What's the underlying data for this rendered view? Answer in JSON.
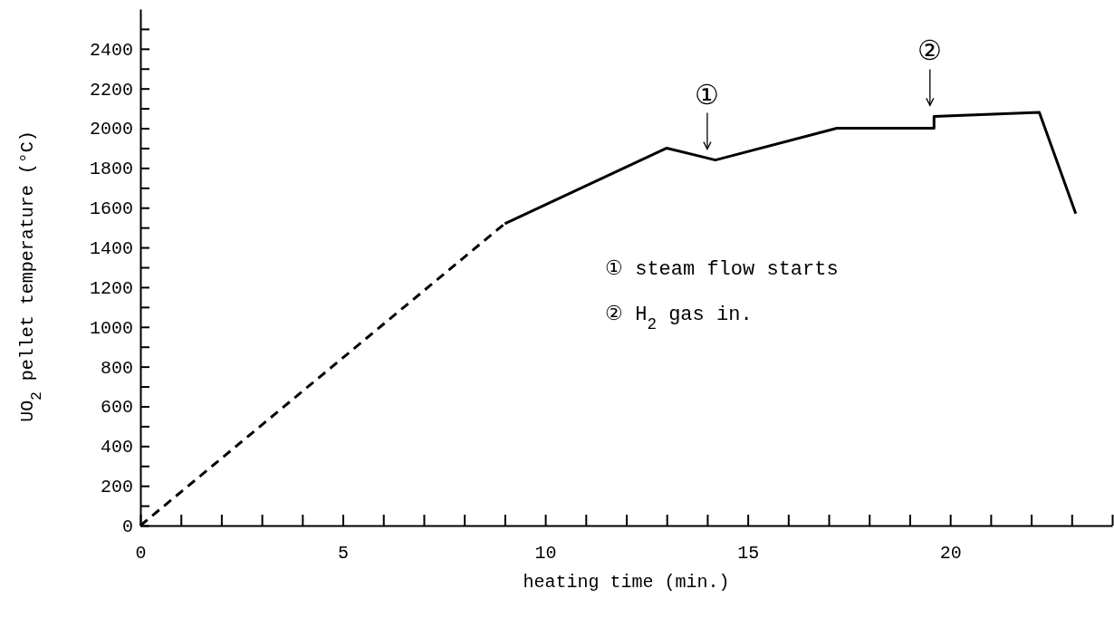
{
  "chart_data": {
    "type": "line",
    "xlabel": "heating time (min.)",
    "ylabel": "UO$_{2}$ pellet temperature (°C)",
    "xlim": [
      0,
      24
    ],
    "ylim": [
      0,
      2600
    ],
    "xticks": [
      0,
      {
        "value": 1,
        "label": null
      },
      {
        "value": 2,
        "label": null
      },
      {
        "value": 3,
        "label": null
      },
      {
        "value": 4,
        "label": null
      },
      5,
      {
        "value": 6,
        "label": null
      },
      {
        "value": 7,
        "label": null
      },
      {
        "value": 8,
        "label": null
      },
      {
        "value": 9,
        "label": null
      },
      10,
      {
        "value": 11,
        "label": null
      },
      {
        "value": 12,
        "label": null
      },
      {
        "value": 13,
        "label": null
      },
      {
        "value": 14,
        "label": null
      },
      15,
      {
        "value": 16,
        "label": null
      },
      {
        "value": 17,
        "label": null
      },
      {
        "value": 18,
        "label": null
      },
      {
        "value": 19,
        "label": null
      },
      20,
      {
        "value": 21,
        "label": null
      },
      {
        "value": 22,
        "label": null
      },
      {
        "value": 23,
        "label": null
      },
      {
        "value": 24,
        "label": null
      }
    ],
    "yticks": [
      0,
      {
        "value": 100,
        "label": null
      },
      200,
      {
        "value": 300,
        "label": null
      },
      400,
      {
        "value": 500,
        "label": null
      },
      600,
      {
        "value": 700,
        "label": null
      },
      800,
      {
        "value": 900,
        "label": null
      },
      1000,
      {
        "value": 1100,
        "label": null
      },
      1200,
      {
        "value": 1300,
        "label": null
      },
      1400,
      {
        "value": 1500,
        "label": null
      },
      1600,
      {
        "value": 1700,
        "label": null
      },
      1800,
      {
        "value": 1900,
        "label": null
      },
      2000,
      {
        "value": 2100,
        "label": null
      },
      2200,
      {
        "value": 2300,
        "label": null
      },
      2400,
      {
        "value": 2500,
        "label": null
      }
    ],
    "grid": false,
    "marker": "none",
    "series": [
      {
        "color": "#000000",
        "line_style": "dashed",
        "x": [
          0,
          9
        ],
        "values": [
          0,
          1520
        ]
      },
      {
        "color": "#000000",
        "line_style": "solid",
        "x": [
          9,
          13,
          14.2,
          17.2,
          19.6,
          19.6,
          22.2,
          23.1
        ],
        "values": [
          1520,
          1900,
          1840,
          2000,
          2000,
          2060,
          2080,
          1570
        ]
      }
    ],
    "annotations": [
      {
        "text": "①",
        "x": 14,
        "y": 1840
      },
      {
        "text": "②",
        "x": 19.5,
        "y": 2060
      },
      "① steam flow starts",
      "② H$_{2}$ gas in."
    ]
  }
}
